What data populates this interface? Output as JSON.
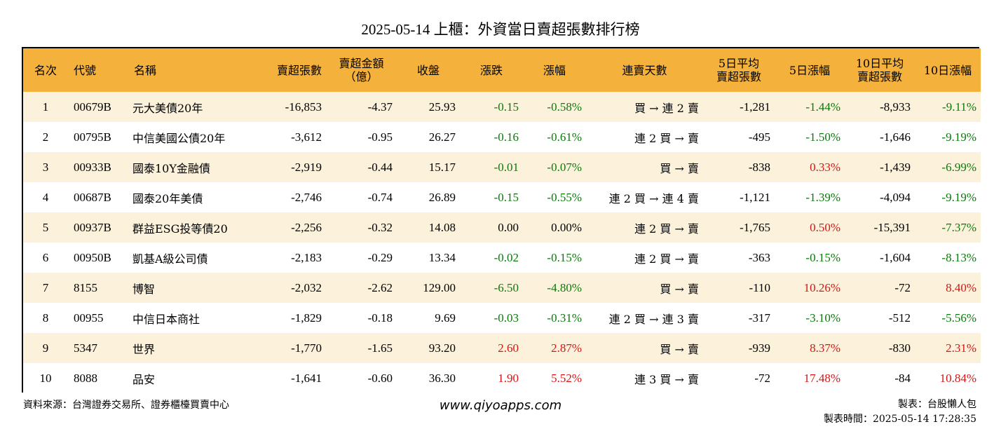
{
  "title": "2025-05-14 上櫃：外資當日賣超張數排行榜",
  "headers": [
    "名次",
    "代號",
    "名稱",
    "賣超張數",
    "賣超金額\n（億）",
    "收盤",
    "漲跌",
    "漲幅",
    "連賣天數",
    "5日平均\n賣超張數",
    "5日漲幅",
    "10日平均\n賣超張數",
    "10日漲幅"
  ],
  "rows": [
    {
      "rank": "1",
      "code": "00679B",
      "name": "元大美債20年",
      "shares": "-16,853",
      "amount": "-4.37",
      "close": "25.93",
      "change": "-0.15",
      "pct": "-0.58%",
      "streak": "買 → 連 2 賣",
      "avg5": "-1,281",
      "pct5": "-1.44%",
      "avg10": "-8,933",
      "pct10": "-9.11%"
    },
    {
      "rank": "2",
      "code": "00795B",
      "name": "中信美國公債20年",
      "shares": "-3,612",
      "amount": "-0.95",
      "close": "26.27",
      "change": "-0.16",
      "pct": "-0.61%",
      "streak": "連 2 買 → 賣",
      "avg5": "-495",
      "pct5": "-1.50%",
      "avg10": "-1,646",
      "pct10": "-9.19%"
    },
    {
      "rank": "3",
      "code": "00933B",
      "name": "國泰10Y金融債",
      "shares": "-2,919",
      "amount": "-0.44",
      "close": "15.17",
      "change": "-0.01",
      "pct": "-0.07%",
      "streak": "買 → 賣",
      "avg5": "-838",
      "pct5": "0.33%",
      "avg10": "-1,439",
      "pct10": "-6.99%"
    },
    {
      "rank": "4",
      "code": "00687B",
      "name": "國泰20年美債",
      "shares": "-2,746",
      "amount": "-0.74",
      "close": "26.89",
      "change": "-0.15",
      "pct": "-0.55%",
      "streak": "連 2 買 → 連 4 賣",
      "avg5": "-1,121",
      "pct5": "-1.39%",
      "avg10": "-4,094",
      "pct10": "-9.19%"
    },
    {
      "rank": "5",
      "code": "00937B",
      "name": "群益ESG投等債20",
      "shares": "-2,256",
      "amount": "-0.32",
      "close": "14.08",
      "change": "0.00",
      "pct": "0.00%",
      "streak": "連 2 買 → 賣",
      "avg5": "-1,765",
      "pct5": "0.50%",
      "avg10": "-15,391",
      "pct10": "-7.37%"
    },
    {
      "rank": "6",
      "code": "00950B",
      "name": "凱基A級公司債",
      "shares": "-2,183",
      "amount": "-0.29",
      "close": "13.34",
      "change": "-0.02",
      "pct": "-0.15%",
      "streak": "連 2 買 → 賣",
      "avg5": "-363",
      "pct5": "-0.15%",
      "avg10": "-1,604",
      "pct10": "-8.13%"
    },
    {
      "rank": "7",
      "code": "8155",
      "name": "博智",
      "shares": "-2,032",
      "amount": "-2.62",
      "close": "129.00",
      "change": "-6.50",
      "pct": "-4.80%",
      "streak": "買 → 賣",
      "avg5": "-110",
      "pct5": "10.26%",
      "avg10": "-72",
      "pct10": "8.40%"
    },
    {
      "rank": "8",
      "code": "00955",
      "name": "中信日本商社",
      "shares": "-1,829",
      "amount": "-0.18",
      "close": "9.69",
      "change": "-0.03",
      "pct": "-0.31%",
      "streak": "連 2 買 → 連 3 賣",
      "avg5": "-317",
      "pct5": "-3.10%",
      "avg10": "-512",
      "pct10": "-5.56%"
    },
    {
      "rank": "9",
      "code": "5347",
      "name": "世界",
      "shares": "-1,770",
      "amount": "-1.65",
      "close": "93.20",
      "change": "2.60",
      "pct": "2.87%",
      "streak": "買 → 賣",
      "avg5": "-939",
      "pct5": "8.37%",
      "avg10": "-830",
      "pct10": "2.31%"
    },
    {
      "rank": "10",
      "code": "8088",
      "name": "品安",
      "shares": "-1,641",
      "amount": "-0.60",
      "close": "36.30",
      "change": "1.90",
      "pct": "5.52%",
      "streak": "連 3 買 → 賣",
      "avg5": "-72",
      "pct5": "17.48%",
      "avg10": "-84",
      "pct10": "10.84%"
    }
  ],
  "footer": {
    "source": "資料來源：台灣證券交易所、證券櫃檯買賣中心",
    "website": "www.qiyoapps.com",
    "maker": "製表：台股懶人包",
    "time": "製表時間：2025-05-14 17:28:35"
  },
  "colors": {
    "header_bg": "#f4b23c",
    "odd_row_bg": "#fcf2dc",
    "negative": "#0a7a0a",
    "positive": "#d81414"
  }
}
